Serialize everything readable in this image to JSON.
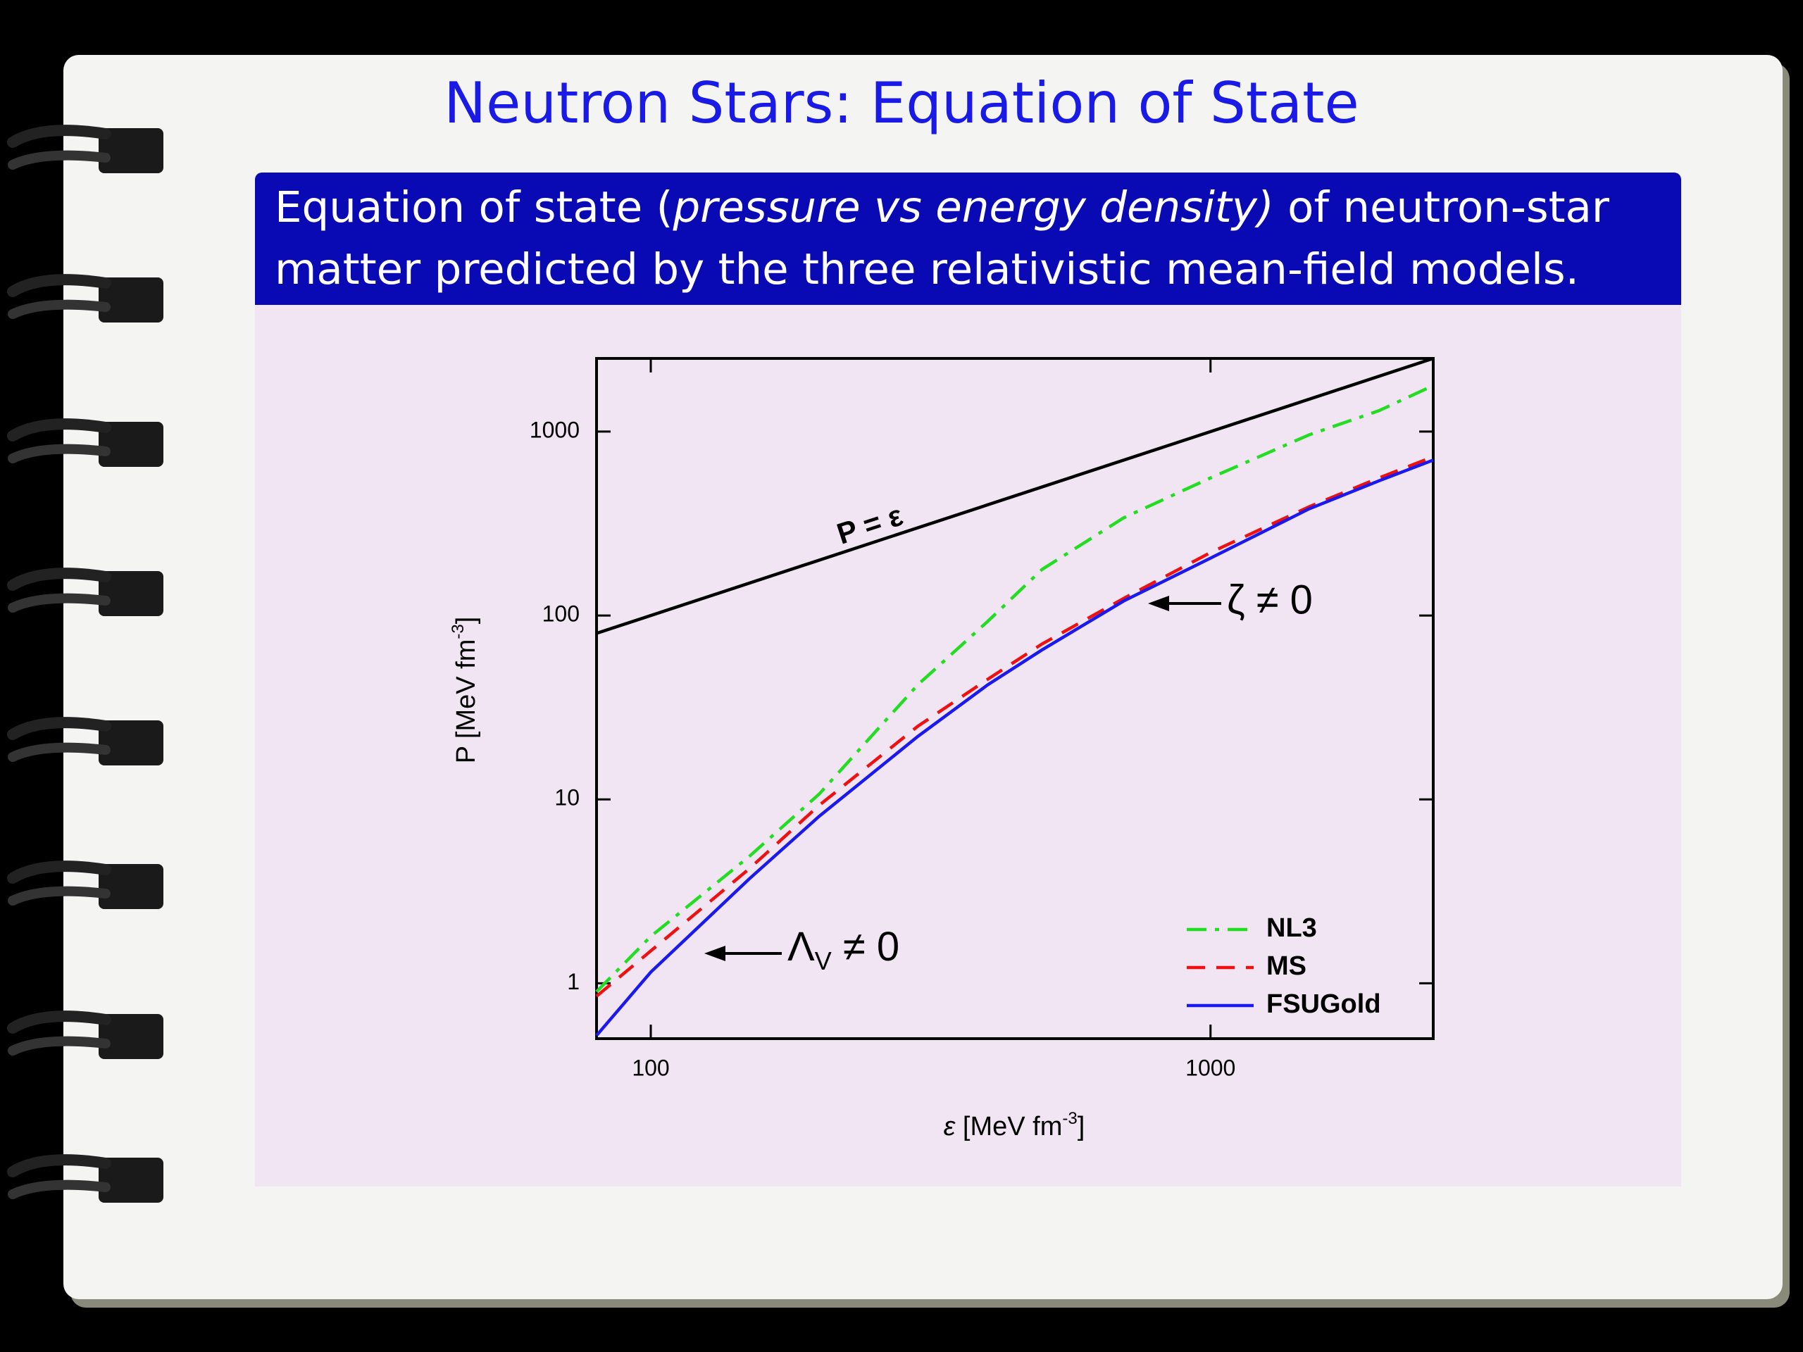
{
  "title": "Neutron Stars: Equation of State",
  "block_title": [
    "Equation of state (",
    "pressure vs energy density)",
    " of neutron-star",
    "matter predicted by the three relativistic mean-field models."
  ],
  "chart_data": {
    "type": "line",
    "xscale": "log",
    "yscale": "log",
    "xlabel": {
      "symbol": "ε",
      "text": " [MeV fm",
      "sup": "-3",
      "end": "]"
    },
    "ylabel": {
      "text": "P [MeV fm",
      "sup": "-3",
      "end": "]"
    },
    "xlim": [
      80,
      2500
    ],
    "ylim": [
      0.5,
      2500
    ],
    "xticks": [
      100,
      1000
    ],
    "yticks": [
      1,
      10,
      100,
      1000
    ],
    "x": [
      80,
      100,
      150,
      200,
      300,
      400,
      500,
      700,
      1000,
      1500,
      2000,
      2500
    ],
    "series": [
      {
        "name": "NL3",
        "color": "#22dd22",
        "style": "dash-dot",
        "values": [
          0.9,
          1.8,
          4.9,
          10.7,
          42,
          93,
          178,
          340,
          560,
          960,
          1300,
          1780
        ]
      },
      {
        "name": "MS",
        "color": "#ee1111",
        "style": "dashed",
        "values": [
          0.85,
          1.5,
          4.2,
          9.3,
          25,
          45,
          70,
          124,
          220,
          390,
          560,
          730
        ]
      },
      {
        "name": "FSUGold",
        "color": "#1a1aee",
        "style": "solid",
        "values": [
          0.52,
          1.15,
          3.7,
          8.1,
          22,
          42,
          65,
          120,
          205,
          380,
          540,
          700
        ]
      }
    ],
    "reference_line": {
      "label": "P = ε",
      "color": "#000000",
      "x": [
        80,
        2500
      ],
      "values": [
        80,
        2500
      ]
    },
    "annotations": [
      {
        "text": "ζ ≠ 0"
      },
      {
        "text": "Λ",
        "sub": "V",
        "rest": " ≠ 0"
      }
    ],
    "legend": "lower right"
  }
}
